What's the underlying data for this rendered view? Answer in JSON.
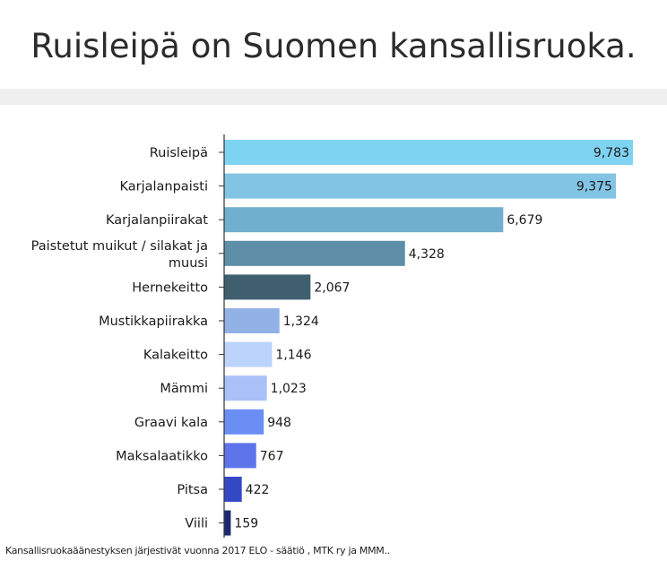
{
  "title": "Ruisleipä on Suomen kansallisruoka.",
  "footer": "Kansallisruokaäänestyksen järjestivät vuonna 2017 ELO - säätiö , MTK ry ja MMM..",
  "chart_data": {
    "type": "bar",
    "orientation": "horizontal",
    "categories": [
      "Ruisleipä",
      "Karjalanpaisti",
      "Karjalanpiirakat",
      "Paistetut muikut / silakat ja muusi",
      "Hernekeitto",
      "Mustikkapiirakka",
      "Kalakeitto",
      "Mämmi",
      "Graavi kala",
      "Maksalaatikko",
      "Pitsa",
      "Viili"
    ],
    "values": [
      9783,
      9375,
      6679,
      4328,
      2067,
      1324,
      1146,
      1023,
      948,
      767,
      422,
      159
    ],
    "value_labels": [
      "9,783",
      "9,375",
      "6,679",
      "4,328",
      "2,067",
      "1,324",
      "1,146",
      "1,023",
      "948",
      "767",
      "422",
      "159"
    ],
    "colors": [
      "#7fd3f2",
      "#82c4e4",
      "#71afcf",
      "#5e8ea8",
      "#3f5f6f",
      "#92b1e4",
      "#bcd3fb",
      "#a9c1f7",
      "#6b8ef5",
      "#5e74ea",
      "#3448c4",
      "#1b2a70"
    ],
    "xlim": [
      0,
      10000
    ],
    "grid": false,
    "legend": "none"
  }
}
